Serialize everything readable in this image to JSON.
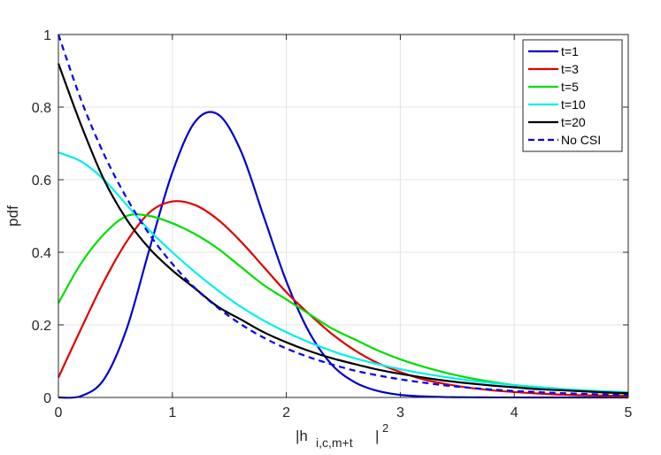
{
  "chart_data": {
    "type": "line",
    "xlabel": {
      "base": "|h",
      "subscript": "i,c,m+t",
      "suffix": "|",
      "superscript": "2"
    },
    "ylabel": "pdf",
    "xlim": [
      0,
      5
    ],
    "ylim": [
      0,
      1
    ],
    "x_ticks": [
      0,
      1,
      2,
      3,
      4,
      5
    ],
    "y_ticks": [
      0,
      0.2,
      0.4,
      0.6,
      0.8,
      1
    ],
    "x_tick_labels": [
      "0",
      "1",
      "2",
      "3",
      "4",
      "5"
    ],
    "y_tick_labels": [
      "0",
      "0.2",
      "0.4",
      "0.6",
      "0.8",
      "1"
    ],
    "grid": true,
    "legend_position": "top-right",
    "x": [
      0,
      0.2,
      0.4,
      0.6,
      0.8,
      1.0,
      1.2,
      1.4,
      1.6,
      1.8,
      2.0,
      2.2,
      2.4,
      2.6,
      2.8,
      3.0,
      3.2,
      3.4,
      3.6,
      3.8,
      4.0,
      4.2,
      4.4,
      4.6,
      4.8,
      5.0
    ],
    "series": [
      {
        "name": "t=1",
        "color": "#0000cc",
        "dash": "solid",
        "values": [
          0.0,
          0.004,
          0.05,
          0.19,
          0.41,
          0.62,
          0.76,
          0.78,
          0.68,
          0.5,
          0.32,
          0.18,
          0.09,
          0.042,
          0.018,
          0.007,
          0.003,
          0.001,
          0.0005,
          0.0002,
          0.0001,
          0.0,
          0.0,
          0.0,
          0.0,
          0.0
        ]
      },
      {
        "name": "t=3",
        "color": "#e00000",
        "dash": "solid",
        "values": [
          0.055,
          0.19,
          0.32,
          0.43,
          0.51,
          0.54,
          0.53,
          0.49,
          0.43,
          0.36,
          0.29,
          0.23,
          0.175,
          0.13,
          0.095,
          0.07,
          0.05,
          0.037,
          0.027,
          0.02,
          0.015,
          0.011,
          0.008,
          0.006,
          0.005,
          0.004
        ]
      },
      {
        "name": "t=5",
        "color": "#00dd00",
        "dash": "solid",
        "values": [
          0.26,
          0.37,
          0.45,
          0.5,
          0.5,
          0.48,
          0.45,
          0.41,
          0.36,
          0.31,
          0.27,
          0.23,
          0.19,
          0.16,
          0.13,
          0.105,
          0.085,
          0.068,
          0.054,
          0.043,
          0.034,
          0.027,
          0.021,
          0.017,
          0.013,
          0.01
        ]
      },
      {
        "name": "t=10",
        "color": "#00eeee",
        "dash": "solid",
        "values": [
          0.675,
          0.65,
          0.6,
          0.53,
          0.46,
          0.4,
          0.345,
          0.295,
          0.25,
          0.212,
          0.18,
          0.152,
          0.128,
          0.108,
          0.092,
          0.078,
          0.066,
          0.056,
          0.047,
          0.04,
          0.034,
          0.029,
          0.024,
          0.02,
          0.017,
          0.014
        ]
      },
      {
        "name": "t=20",
        "color": "#000000",
        "dash": "solid",
        "values": [
          0.92,
          0.75,
          0.6,
          0.49,
          0.41,
          0.35,
          0.3,
          0.25,
          0.215,
          0.18,
          0.152,
          0.128,
          0.108,
          0.092,
          0.077,
          0.065,
          0.055,
          0.046,
          0.039,
          0.033,
          0.028,
          0.023,
          0.02,
          0.017,
          0.014,
          0.012
        ]
      },
      {
        "name": "No CSI",
        "color": "#0000ee",
        "dash": "dashed",
        "values": [
          1.0,
          0.819,
          0.67,
          0.549,
          0.449,
          0.368,
          0.301,
          0.247,
          0.202,
          0.165,
          0.135,
          0.111,
          0.091,
          0.074,
          0.061,
          0.05,
          0.041,
          0.033,
          0.027,
          0.022,
          0.018,
          0.015,
          0.012,
          0.01,
          0.008,
          0.007
        ]
      }
    ]
  }
}
